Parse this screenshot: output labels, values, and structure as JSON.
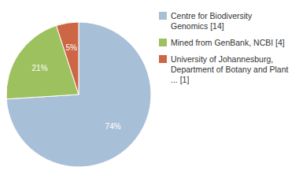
{
  "chart_data": {
    "type": "pie",
    "categories": [
      "Centre for Biodiversity\nGenomics [14]",
      "Mined from GenBank, NCBI [4]",
      "University of Johannesburg,\nDepartment of Botany and Plant\n... [1]"
    ],
    "values": [
      74,
      21,
      5
    ],
    "value_labels": [
      "74%",
      "21%",
      "5%"
    ],
    "data_labels": true,
    "colors": [
      "#a8bfd8",
      "#9dc15e",
      "#cc6644"
    ],
    "legend": "right"
  }
}
